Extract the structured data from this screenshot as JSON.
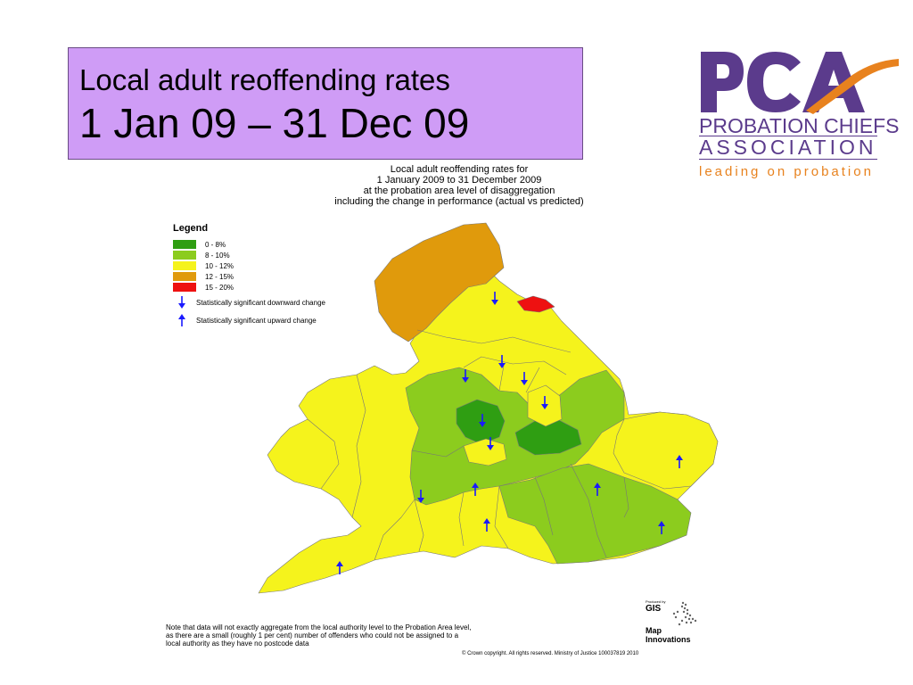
{
  "slide": {
    "title_line1": "Local adult reoffending rates",
    "title_line2": "1 Jan 09 – 31 Dec 09"
  },
  "logo": {
    "letters": "PCA",
    "line1": "PROBATION CHIEFS",
    "line2": "ASSOCIATION",
    "tagline": "leading on probation",
    "colors": {
      "purple": "#5b3b8c",
      "orange": "#e8821e"
    }
  },
  "map": {
    "title_lines": [
      "Local adult reoffending rates for",
      "1 January 2009 to 31 December 2009",
      "at the probation area level of disaggregation",
      "including the change in performance (actual vs predicted)"
    ],
    "legend": {
      "heading": "Legend",
      "classes": [
        {
          "label": "0 - 8%",
          "color": "#2f9e12"
        },
        {
          "label": "8 - 10%",
          "color": "#8ccc1e"
        },
        {
          "label": "10 - 12%",
          "color": "#f5f31c"
        },
        {
          "label": "12 - 15%",
          "color": "#e09a0c"
        },
        {
          "label": "15 - 20%",
          "color": "#ee1111"
        }
      ],
      "arrows": [
        {
          "direction": "down",
          "label": "Statistically significant downward change"
        },
        {
          "direction": "up",
          "label": "Statistically significant upward change"
        }
      ]
    },
    "note_lines": [
      "Note that data will not exactly aggregate from the local authority level to the Probation Area level,",
      "as there are a small (roughly 1 per cent) number of offenders who could not be assigned to a",
      "local authority as they have no postcode data"
    ],
    "copyright": "© Crown copyright. All rights reserved. Ministry of Justice 100037819 2010",
    "producer": {
      "small": "Produced by",
      "gis": "GIS",
      "line1": "Map",
      "line2": "Innovations"
    }
  }
}
